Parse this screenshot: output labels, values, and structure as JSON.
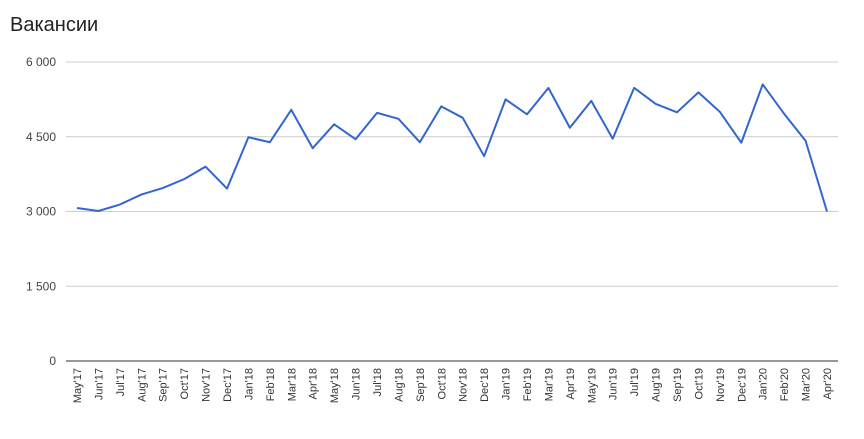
{
  "chart_data": {
    "type": "line",
    "title": "Вакансии",
    "xlabel": "",
    "ylabel": "",
    "ylim": [
      0,
      6000
    ],
    "yticks": [
      0,
      1500,
      3000,
      4500,
      6000
    ],
    "ytick_labels": [
      "0",
      "1 500",
      "3 000",
      "4 500",
      "6 000"
    ],
    "grid": true,
    "legend": "none",
    "line_color": "#3366cc",
    "categories": [
      "May'17",
      "Jun'17",
      "Jul'17",
      "Aug'17",
      "Sep'17",
      "Oct'17",
      "Nov'17",
      "Dec'17",
      "Jan'18",
      "Feb'18",
      "Mar'18",
      "Apr'18",
      "May'18",
      "Jun'18",
      "Jul'18",
      "Aug'18",
      "Sep'18",
      "Oct'18",
      "Nov'18",
      "Dec'18",
      "Jan'19",
      "Feb'19",
      "Mar'19",
      "Apr'19",
      "May'19",
      "Jun'19",
      "Jul'19",
      "Aug'19",
      "Sep'19",
      "Oct'19",
      "Nov'19",
      "Dec'19",
      "Jan'20",
      "Feb'20",
      "Mar'20",
      "Apr'20"
    ],
    "values": [
      3070,
      3010,
      3140,
      3340,
      3470,
      3650,
      3900,
      3460,
      4490,
      4390,
      5040,
      4270,
      4750,
      4450,
      4980,
      4860,
      4390,
      5110,
      4880,
      4110,
      5250,
      4950,
      5480,
      4680,
      5220,
      4460,
      5480,
      5160,
      4990,
      5390,
      5000,
      4380,
      5550,
      4960,
      4420,
      3000
    ]
  }
}
